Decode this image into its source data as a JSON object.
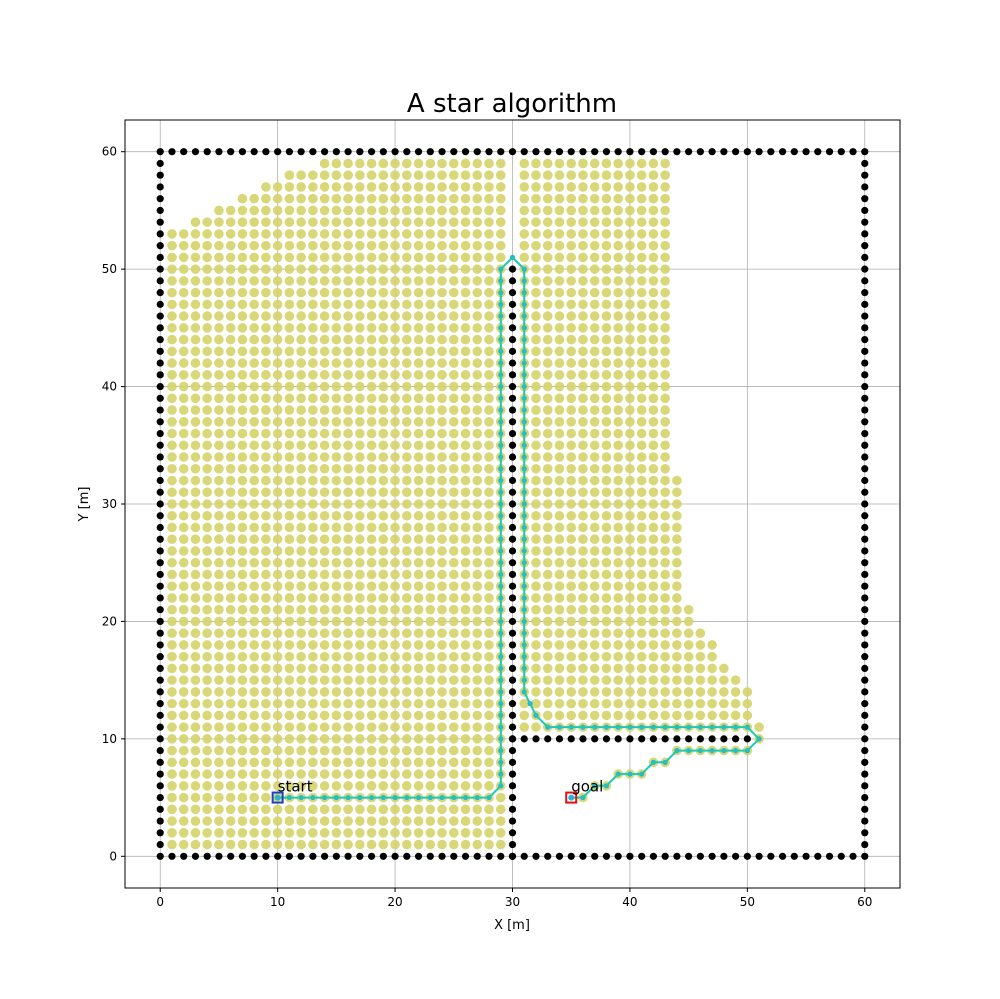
{
  "chart_data": {
    "type": "scatter",
    "title": "A star algorithm",
    "xlabel": "X [m]",
    "ylabel": "Y [m]",
    "xlim": [
      -3,
      63
    ],
    "ylim": [
      -2.7,
      62.7
    ],
    "xticks": [
      0,
      10,
      20,
      30,
      40,
      50,
      60
    ],
    "yticks": [
      0,
      10,
      20,
      30,
      40,
      50,
      60
    ],
    "grid": true,
    "colors": {
      "obstacle": "#000000",
      "explored": "#d4d46a",
      "path_line": "#1ec8b4",
      "path_point": "#2bb3d4",
      "start_marker": "#2040c0",
      "goal_marker": "#e01010"
    },
    "obstacles": {
      "boundary": {
        "xmin": 0,
        "xmax": 60,
        "ymin": 0,
        "ymax": 60
      },
      "walls": [
        {
          "x": 30,
          "ymin": 0,
          "ymax": 50
        },
        {
          "y": 10,
          "xmin": 30,
          "xmax": 50
        }
      ]
    },
    "explored_region": {
      "left_columns": [
        [
          1,
          1,
          53
        ],
        [
          2,
          1,
          53
        ],
        [
          3,
          1,
          54
        ],
        [
          4,
          1,
          54
        ],
        [
          5,
          1,
          55
        ],
        [
          6,
          1,
          55
        ],
        [
          7,
          1,
          56
        ],
        [
          8,
          1,
          56
        ],
        [
          9,
          1,
          57
        ],
        [
          10,
          1,
          57
        ],
        [
          11,
          1,
          58
        ],
        [
          12,
          1,
          58
        ],
        [
          13,
          1,
          58
        ],
        [
          14,
          1,
          59
        ],
        [
          15,
          1,
          59
        ],
        [
          16,
          1,
          59
        ],
        [
          17,
          1,
          59
        ],
        [
          18,
          1,
          59
        ],
        [
          19,
          1,
          59
        ],
        [
          20,
          1,
          59
        ],
        [
          21,
          1,
          59
        ],
        [
          22,
          1,
          59
        ],
        [
          23,
          1,
          59
        ],
        [
          24,
          1,
          59
        ],
        [
          25,
          1,
          59
        ],
        [
          26,
          1,
          59
        ],
        [
          27,
          1,
          59
        ],
        [
          28,
          1,
          59
        ],
        [
          29,
          1,
          59
        ]
      ],
      "right_columns": [
        [
          31,
          11,
          59
        ],
        [
          32,
          11,
          59
        ],
        [
          33,
          11,
          59
        ],
        [
          34,
          11,
          59
        ],
        [
          35,
          11,
          59
        ],
        [
          36,
          11,
          59
        ],
        [
          37,
          11,
          59
        ],
        [
          38,
          11,
          59
        ],
        [
          39,
          11,
          59
        ],
        [
          40,
          11,
          59
        ],
        [
          41,
          11,
          59
        ],
        [
          42,
          11,
          59
        ],
        [
          43,
          11,
          59
        ],
        [
          44,
          11,
          32
        ],
        [
          45,
          11,
          21
        ],
        [
          46,
          11,
          19
        ],
        [
          47,
          11,
          18
        ],
        [
          48,
          11,
          16
        ],
        [
          49,
          11,
          15
        ],
        [
          50,
          11,
          14
        ],
        [
          51,
          11,
          11
        ]
      ],
      "lower_points": [
        [
          36,
          5
        ],
        [
          37,
          6
        ],
        [
          38,
          6
        ],
        [
          39,
          7
        ],
        [
          40,
          7
        ],
        [
          41,
          7
        ],
        [
          42,
          8
        ],
        [
          43,
          8
        ],
        [
          44,
          9
        ],
        [
          45,
          9
        ],
        [
          46,
          9
        ],
        [
          47,
          9
        ],
        [
          48,
          9
        ],
        [
          49,
          9
        ],
        [
          50,
          9
        ],
        [
          51,
          10
        ]
      ]
    },
    "path": {
      "x": [
        10,
        28,
        29,
        29,
        30,
        31,
        31,
        32,
        33,
        50,
        51,
        50,
        44,
        43,
        42,
        41,
        40,
        39,
        38,
        37,
        36,
        35
      ],
      "y": [
        5,
        5,
        6,
        50,
        51,
        50,
        14,
        12,
        11,
        11,
        10,
        9,
        9,
        8,
        8,
        7,
        7,
        7,
        6,
        6,
        5,
        5
      ]
    },
    "annotations": [
      {
        "text": "start",
        "x": 10,
        "y": 5
      },
      {
        "text": "goal",
        "x": 35,
        "y": 5
      }
    ]
  }
}
